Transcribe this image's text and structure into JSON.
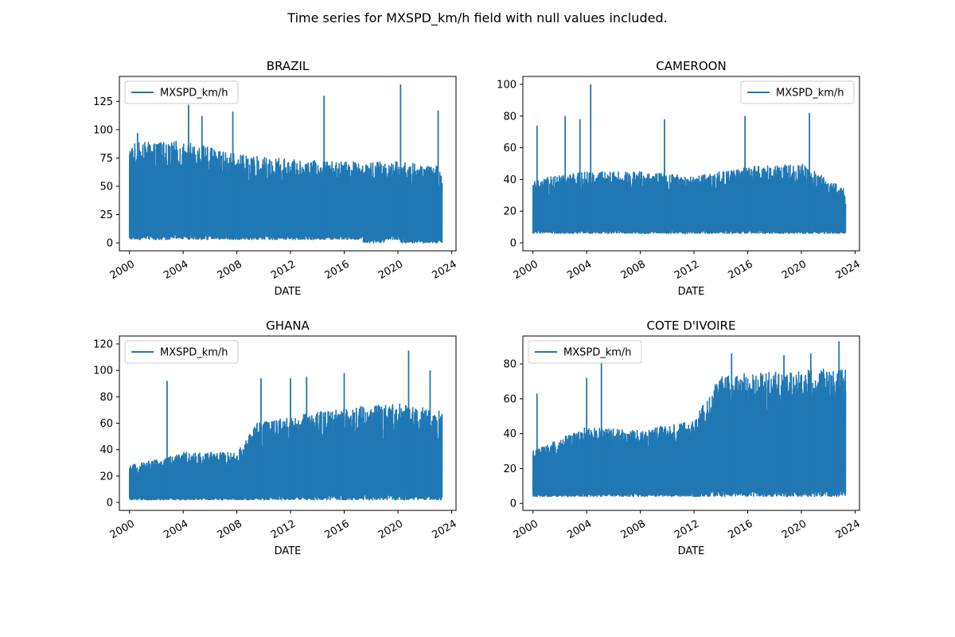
{
  "figure": {
    "suptitle": "Time series for MXSPD_km/h field with null values included."
  },
  "style": {
    "line_color": "#1f77b4"
  },
  "chart_data": [
    {
      "type": "line",
      "title": "BRAZIL",
      "xlabel": "DATE",
      "ylabel": "",
      "legend": {
        "label": "MXSPD_km/h",
        "placement": "top-left"
      },
      "xlim": [
        "1999-04-01",
        "2024-05-01"
      ],
      "ylim": [
        -7,
        147
      ],
      "xticks": [
        "2000",
        "2004",
        "2008",
        "2012",
        "2016",
        "2020",
        "2024"
      ],
      "yticks": [
        "0",
        "25",
        "50",
        "75",
        "100",
        "125"
      ],
      "series": [
        {
          "date_range": [
            "2000-01-01",
            "2023-04-15"
          ],
          "typical_min": 3,
          "typical_max": [
            [
              2000,
              88
            ],
            [
              2004,
              90
            ],
            [
              2008,
              78
            ],
            [
              2012,
              74
            ],
            [
              2016,
              72
            ],
            [
              2020,
              72
            ],
            [
              2023,
              68
            ]
          ],
          "spikes": [
            [
              2000.6,
              97
            ],
            [
              2004.4,
              122
            ],
            [
              2005.4,
              112
            ],
            [
              2007.7,
              116
            ],
            [
              2014.5,
              130
            ],
            [
              2020.2,
              140
            ],
            [
              2023.0,
              117
            ]
          ],
          "zero_periods": [
            [
              "2017-06-01",
              "2018-12-31"
            ],
            [
              "2020-03-01",
              "2023-04-15"
            ]
          ]
        }
      ]
    },
    {
      "type": "line",
      "title": "CAMEROON",
      "xlabel": "DATE",
      "ylabel": "",
      "legend": {
        "label": "MXSPD_km/h",
        "placement": "top-right"
      },
      "xlim": [
        "1999-04-01",
        "2024-05-01"
      ],
      "ylim": [
        -5,
        105
      ],
      "xticks": [
        "2000",
        "2004",
        "2008",
        "2012",
        "2016",
        "2020",
        "2024"
      ],
      "yticks": [
        "0",
        "20",
        "40",
        "60",
        "80",
        "100"
      ],
      "series": [
        {
          "date_range": [
            "2000-01-01",
            "2023-04-15"
          ],
          "typical_min": 6,
          "typical_max": [
            [
              2000,
              40
            ],
            [
              2004,
              45
            ],
            [
              2008,
              45
            ],
            [
              2012,
              42
            ],
            [
              2016,
              48
            ],
            [
              2020,
              50
            ],
            [
              2023,
              35
            ]
          ],
          "spikes": [
            [
              2000.3,
              74
            ],
            [
              2002.4,
              80
            ],
            [
              2003.5,
              78
            ],
            [
              2004.3,
              100
            ],
            [
              2009.8,
              78
            ],
            [
              2015.8,
              80
            ],
            [
              2020.6,
              82
            ]
          ],
          "zero_periods": []
        }
      ]
    },
    {
      "type": "line",
      "title": "GHANA",
      "xlabel": "DATE",
      "ylabel": "",
      "legend": {
        "label": "MXSPD_km/h",
        "placement": "top-left"
      },
      "xlim": [
        "1999-04-01",
        "2024-05-01"
      ],
      "ylim": [
        -6,
        126
      ],
      "xticks": [
        "2000",
        "2004",
        "2008",
        "2012",
        "2016",
        "2020",
        "2024"
      ],
      "yticks": [
        "0",
        "20",
        "40",
        "60",
        "80",
        "100",
        "120"
      ],
      "series": [
        {
          "date_range": [
            "2000-01-01",
            "2023-04-15"
          ],
          "typical_min": 2,
          "typical_max": [
            [
              2000,
              28
            ],
            [
              2004,
              38
            ],
            [
              2008,
              38
            ],
            [
              2009.5,
              60
            ],
            [
              2012,
              65
            ],
            [
              2016,
              72
            ],
            [
              2020,
              75
            ],
            [
              2023,
              70
            ]
          ],
          "spikes": [
            [
              2002.8,
              92
            ],
            [
              2009.8,
              94
            ],
            [
              2012.0,
              94
            ],
            [
              2013.2,
              95
            ],
            [
              2016.0,
              98
            ],
            [
              2020.8,
              115
            ],
            [
              2022.4,
              100
            ]
          ],
          "zero_periods": []
        }
      ]
    },
    {
      "type": "line",
      "title": "COTE D'IVOIRE",
      "xlabel": "DATE",
      "ylabel": "",
      "legend": {
        "label": "MXSPD_km/h",
        "placement": "top-left"
      },
      "xlim": [
        "1999-04-01",
        "2024-05-01"
      ],
      "ylim": [
        -4,
        96
      ],
      "xticks": [
        "2000",
        "2004",
        "2008",
        "2012",
        "2016",
        "2020",
        "2024"
      ],
      "yticks": [
        "0",
        "20",
        "40",
        "60",
        "80"
      ],
      "series": [
        {
          "date_range": [
            "2000-01-01",
            "2023-04-15"
          ],
          "typical_min": 4,
          "typical_max": [
            [
              2000,
              30
            ],
            [
              2004,
              44
            ],
            [
              2008,
              42
            ],
            [
              2012,
              48
            ],
            [
              2014,
              74
            ],
            [
              2016,
              75
            ],
            [
              2020,
              76
            ],
            [
              2023,
              78
            ]
          ],
          "spikes": [
            [
              2000.3,
              63
            ],
            [
              2004.0,
              72
            ],
            [
              2005.1,
              82
            ],
            [
              2014.8,
              86
            ],
            [
              2018.7,
              85
            ],
            [
              2020.7,
              86
            ],
            [
              2022.8,
              93
            ]
          ],
          "zero_periods": []
        }
      ]
    }
  ]
}
